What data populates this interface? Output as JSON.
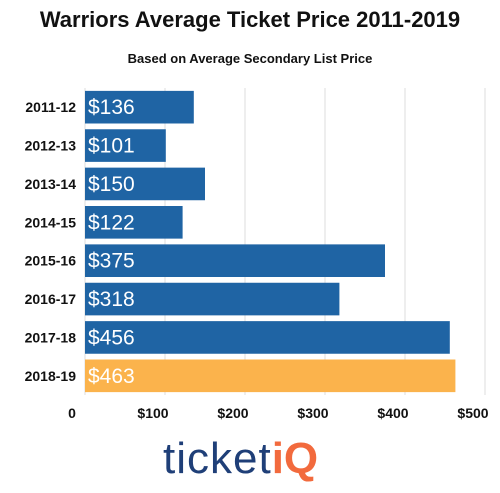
{
  "brand": {
    "logo_text": "ticketiQ",
    "colors": {
      "primary_bar": "#1f64a4",
      "highlight_bar": "#fbb34c",
      "logo_navy": "#1f3f78",
      "logo_orange": "#f26a3d"
    }
  },
  "chart_data": {
    "type": "bar",
    "orientation": "horizontal",
    "title": "Warriors Average Ticket Price 2011-2019",
    "subtitle": "Based on Average Secondary List Price",
    "categories": [
      "2011-12",
      "2012-13",
      "2013-14",
      "2014-15",
      "2015-16",
      "2016-17",
      "2017-18",
      "2018-19"
    ],
    "values": [
      136,
      101,
      150,
      122,
      375,
      318,
      456,
      463
    ],
    "data_labels": [
      "$136",
      "$101",
      "$150",
      "$122",
      "$375",
      "$318",
      "$456",
      "$463"
    ],
    "highlight_category": "2018-19",
    "xlim": [
      0,
      500
    ],
    "x_ticks": [
      0,
      100,
      200,
      300,
      400,
      500
    ],
    "x_tick_labels": [
      "0",
      "$100",
      "$200",
      "$300",
      "$400",
      "$500"
    ],
    "grid": true,
    "legend": "none"
  }
}
